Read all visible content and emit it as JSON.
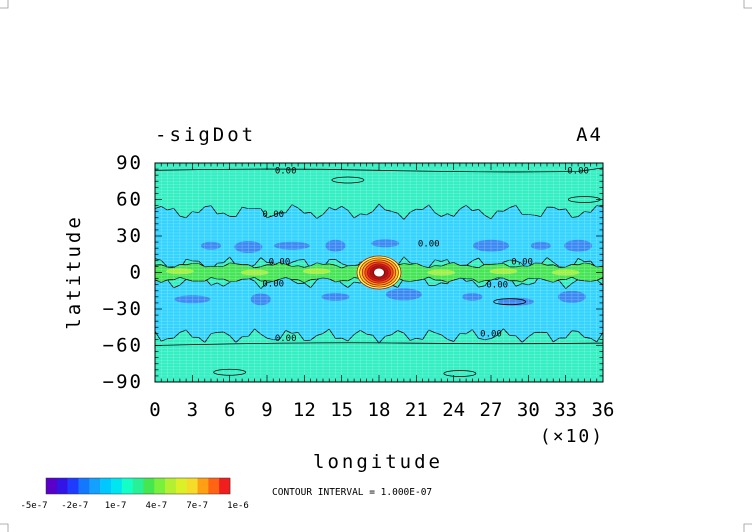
{
  "chart_data": {
    "type": "heatmap",
    "title": "-sigDot",
    "panel_label": "A4",
    "xlabel": "longitude",
    "ylabel": "latitude",
    "x_multiplier_label": "(×10)",
    "xlim": [
      0,
      36
    ],
    "ylim": [
      -90,
      90
    ],
    "x_ticks": [
      0,
      3,
      6,
      9,
      12,
      15,
      18,
      21,
      24,
      27,
      30,
      33,
      36
    ],
    "y_ticks": [
      90,
      60,
      30,
      0,
      -30,
      -60,
      -90
    ],
    "x_tick_labels": [
      "0",
      "3",
      "6",
      "9",
      "12",
      "15",
      "18",
      "21",
      "24",
      "27",
      "30",
      "33",
      "36"
    ],
    "y_tick_labels": [
      "90",
      "60",
      "30",
      "0",
      "−30",
      "−60",
      "−90"
    ],
    "contour_interval_text": "CONTOUR INTERVAL = 1.000E-07",
    "contour_labels": [
      {
        "text": "0.00",
        "x": 10.5,
        "y": 84
      },
      {
        "text": "0.00",
        "x": 34.0,
        "y": 84
      },
      {
        "text": "0.00",
        "x": 9.5,
        "y": 48
      },
      {
        "text": "0.00",
        "x": 22.0,
        "y": 24
      },
      {
        "text": "0.00",
        "x": 10.0,
        "y": 9
      },
      {
        "text": "0.00",
        "x": 9.5,
        "y": -9
      },
      {
        "text": "0.00",
        "x": 29.5,
        "y": 9
      },
      {
        "text": "0.00",
        "x": 27.5,
        "y": -10
      },
      {
        "text": "0.00",
        "x": 10.5,
        "y": -54
      },
      {
        "text": "0.00",
        "x": 27.0,
        "y": -50
      }
    ],
    "field_features": [
      {
        "feature": "near-zero background",
        "value": 0.0,
        "lat_range": [
          -90,
          90
        ]
      },
      {
        "feature": "negative band north",
        "value": -1e-07,
        "lat_range": [
          8,
          50
        ]
      },
      {
        "feature": "negative band south",
        "value": -1e-07,
        "lat_range": [
          -52,
          -8
        ]
      },
      {
        "feature": "positive equatorial band",
        "value": 1e-07,
        "lat_range": [
          -6,
          6
        ]
      },
      {
        "feature": "strong maximum",
        "value": 1e-06,
        "lon": 18,
        "lat": 0
      }
    ],
    "colorbar": {
      "tick_labels": [
        "-5e-7",
        "-2e-7",
        "1e-7",
        "4e-7",
        "7e-7",
        "1e-6"
      ],
      "colors": [
        "#5a00c8",
        "#3214e6",
        "#1e3cff",
        "#1478ff",
        "#14a0ff",
        "#00c8ff",
        "#00e6f0",
        "#14ffc8",
        "#28f096",
        "#46e650",
        "#78f03c",
        "#b4f032",
        "#dcf028",
        "#f5dc28",
        "#ffa014",
        "#ff6414",
        "#f01e1e"
      ]
    }
  },
  "colors": {
    "background_field": "#32f0c0",
    "negative_field": "#32d4ff",
    "negative_strong": "#3c78f0",
    "positive_field": "#46e650",
    "positive_light": "#a0f03c",
    "peak_core": "#ffffff",
    "contour_line": "#000000",
    "grid": "#c8f0ff"
  }
}
